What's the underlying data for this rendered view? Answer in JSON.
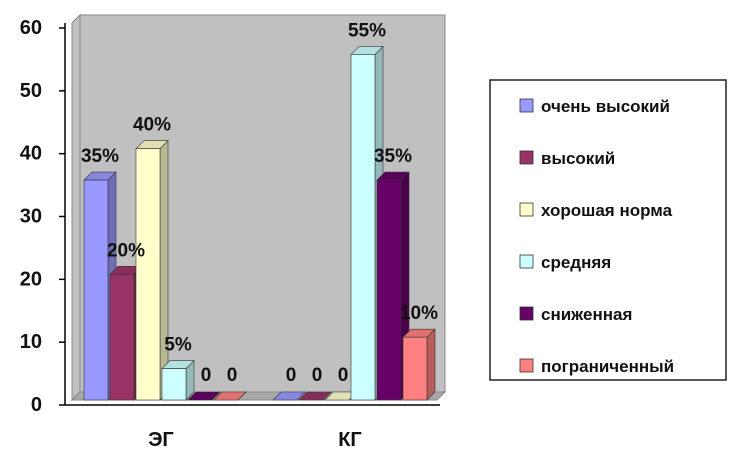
{
  "chart_data": {
    "type": "bar",
    "style": "3d-clustered",
    "categories": [
      "ЭГ",
      "КГ"
    ],
    "series": [
      {
        "name": "очень высокий",
        "color": "#9999ff",
        "values": [
          35,
          0
        ],
        "labels": [
          "35%",
          "0"
        ]
      },
      {
        "name": "высокий",
        "color": "#993366",
        "values": [
          20,
          0
        ],
        "labels": [
          "20%",
          "0"
        ]
      },
      {
        "name": "хорошая норма",
        "color": "#ffffcc",
        "values": [
          40,
          0
        ],
        "labels": [
          "40%",
          "0"
        ]
      },
      {
        "name": "средняя",
        "color": "#ccffff",
        "values": [
          5,
          55
        ],
        "labels": [
          "5%",
          "55%"
        ]
      },
      {
        "name": "сниженная",
        "color": "#660066",
        "values": [
          0,
          35
        ],
        "labels": [
          "0",
          "35%"
        ]
      },
      {
        "name": "пограниченный",
        "color": "#ff8080",
        "values": [
          0,
          10
        ],
        "labels": [
          "0",
          "10%"
        ]
      }
    ],
    "ylim": [
      0,
      60
    ],
    "yticks": [
      0,
      10,
      20,
      30,
      40,
      50,
      60
    ],
    "grid": false,
    "wall_color": "#c0c0c0",
    "legend_position": "right"
  }
}
